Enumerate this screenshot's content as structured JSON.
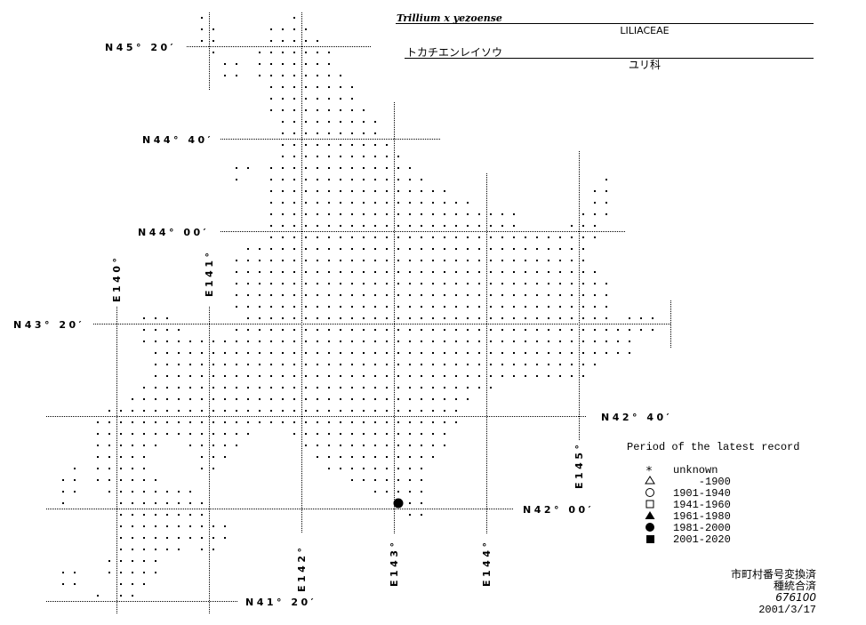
{
  "header": {
    "scientific_name": "Trillium x yezoense",
    "family": "LILIACEAE",
    "japanese_name": "トカチエンレイソウ",
    "family_ja": "ユリ科"
  },
  "latitude_labels": [
    "N45° 20′",
    "N44° 40′",
    "N44° 00′",
    "N43° 20′",
    "N42° 40′",
    "N42° 00′",
    "N41° 20′"
  ],
  "longitude_labels": [
    "E140°",
    "E141°",
    "E142°",
    "E143°",
    "E144°",
    "E145°"
  ],
  "legend": {
    "title": "Period of the latest record",
    "items": [
      {
        "symbol": "asterisk",
        "label": "unknown"
      },
      {
        "symbol": "open-triangle",
        "label": "    -1900"
      },
      {
        "symbol": "open-circle",
        "label": "1901-1940"
      },
      {
        "symbol": "open-square",
        "label": "1941-1960"
      },
      {
        "symbol": "filled-triangle",
        "label": "1961-1980"
      },
      {
        "symbol": "filled-circle",
        "label": "1981-2000"
      },
      {
        "symbol": "filled-square",
        "label": "2001-2020"
      }
    ]
  },
  "footer": {
    "line1": "市町村番号変換済",
    "line2": "種統合済",
    "code": "676100",
    "date": "2001/3/17"
  },
  "map": {
    "mesh_rows": [
      [
        [
          0,
          0
        ],
        [
          8,
          8
        ]
      ],
      [
        [
          0,
          1
        ],
        [
          6,
          9
        ]
      ],
      [
        [
          0,
          1
        ],
        [
          6,
          10
        ]
      ],
      [
        [
          1,
          1
        ],
        [
          5,
          11
        ]
      ],
      [
        [
          2,
          3
        ],
        [
          5,
          11
        ]
      ],
      [
        [
          2,
          3
        ],
        [
          5,
          12
        ]
      ],
      [
        [
          6,
          13
        ]
      ],
      [
        [
          6,
          13
        ]
      ],
      [
        [
          6,
          14
        ]
      ],
      [
        [
          7,
          15
        ]
      ],
      [
        [
          7,
          15
        ]
      ],
      [
        [
          7,
          16
        ]
      ],
      [
        [
          7,
          17
        ]
      ],
      [
        [
          3,
          4
        ],
        [
          6,
          18
        ]
      ],
      [
        [
          3,
          3
        ],
        [
          6,
          19
        ],
        [
          35,
          35
        ]
      ],
      [
        [
          6,
          21
        ],
        [
          34,
          35
        ]
      ],
      [
        [
          6,
          23
        ],
        [
          34,
          35
        ]
      ],
      [
        [
          6,
          27
        ],
        [
          33,
          35
        ]
      ],
      [
        [
          6,
          27
        ],
        [
          32,
          34
        ]
      ],
      [
        [
          6,
          34
        ]
      ],
      [
        [
          4,
          33
        ]
      ],
      [
        [
          3,
          33
        ]
      ],
      [
        [
          3,
          34
        ]
      ],
      [
        [
          3,
          35
        ]
      ],
      [
        [
          3,
          35
        ]
      ],
      [
        [
          3,
          35
        ]
      ],
      [
        [
          -5,
          -3
        ],
        [
          4,
          35
        ],
        [
          37,
          39
        ]
      ],
      [
        [
          -5,
          -2
        ],
        [
          3,
          39
        ]
      ],
      [
        [
          -5,
          37
        ]
      ],
      [
        [
          -4,
          37
        ]
      ],
      [
        [
          -4,
          34
        ]
      ],
      [
        [
          -4,
          33
        ]
      ],
      [
        [
          -5,
          25
        ]
      ],
      [
        [
          -6,
          23
        ]
      ],
      [
        [
          -8,
          22
        ]
      ],
      [
        [
          -9,
          22
        ]
      ],
      [
        [
          -9,
          4
        ],
        [
          8,
          21
        ]
      ],
      [
        [
          -9,
          -4
        ],
        [
          -1,
          3
        ],
        [
          9,
          21
        ]
      ],
      [
        [
          -9,
          -5
        ],
        [
          0,
          2
        ],
        [
          10,
          20
        ]
      ],
      [
        [
          -11,
          -11
        ],
        [
          -9,
          -5
        ],
        [
          0,
          1
        ],
        [
          11,
          19
        ]
      ],
      [
        [
          -12,
          -11
        ],
        [
          -9,
          -4
        ],
        [
          13,
          19
        ]
      ],
      [
        [
          -12,
          -11
        ],
        [
          -8,
          -1
        ],
        [
          15,
          19
        ]
      ],
      [
        [
          -12,
          -12
        ],
        [
          -7,
          0
        ],
        [
          18,
          19
        ]
      ],
      [
        [
          -7,
          0
        ],
        [
          18,
          19
        ]
      ],
      [
        [
          -7,
          2
        ]
      ],
      [
        [
          -7,
          2
        ]
      ],
      [
        [
          -7,
          -2
        ],
        [
          0,
          1
        ]
      ],
      [
        [
          -8,
          -4
        ]
      ],
      [
        [
          -12,
          -11
        ],
        [
          -8,
          -4
        ]
      ],
      [
        [
          -12,
          -11
        ],
        [
          -7,
          -5
        ]
      ],
      [
        [
          -9,
          -9
        ],
        [
          -7,
          -6
        ]
      ]
    ],
    "records": [
      {
        "row": 42,
        "col": 17,
        "period": "1981-2000",
        "symbol": "filled-circle"
      }
    ]
  }
}
